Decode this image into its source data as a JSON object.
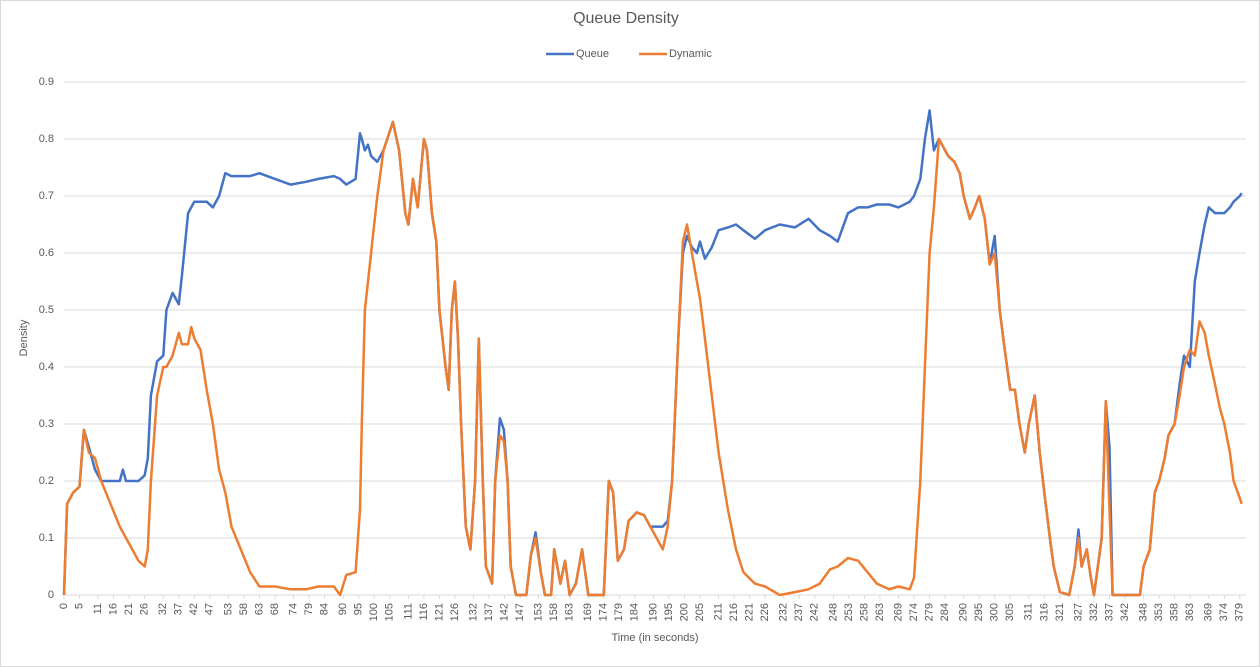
{
  "chart_data": {
    "type": "line",
    "title": "Queue Density",
    "x_label": "Time (in seconds)",
    "y_label": "Density",
    "legend": "top",
    "grid": true,
    "xlim": [
      0,
      381
    ],
    "ylim": [
      0,
      0.9
    ],
    "yticks": [
      0,
      0.1,
      0.2,
      0.3,
      0.4,
      0.5,
      0.6,
      0.7,
      0.8,
      0.9
    ],
    "xticks": [
      0,
      5,
      11,
      16,
      21,
      26,
      32,
      37,
      42,
      47,
      53,
      58,
      63,
      68,
      74,
      79,
      84,
      90,
      95,
      100,
      105,
      111,
      116,
      121,
      126,
      132,
      137,
      142,
      147,
      153,
      158,
      163,
      169,
      174,
      179,
      184,
      190,
      195,
      200,
      205,
      211,
      216,
      221,
      226,
      232,
      237,
      242,
      248,
      253,
      258,
      263,
      269,
      274,
      279,
      284,
      290,
      295,
      300,
      305,
      311,
      316,
      321,
      327,
      332,
      337,
      342,
      348,
      353,
      358,
      363,
      369,
      374,
      379
    ],
    "x": [
      0,
      1,
      3,
      5,
      6.4,
      8,
      10,
      12,
      15,
      18,
      19,
      20,
      22,
      24,
      26,
      27,
      28,
      30,
      32,
      33,
      35,
      37,
      38,
      40,
      41,
      42,
      44,
      46,
      48,
      50,
      52,
      54,
      57,
      60,
      63,
      68,
      73,
      78,
      82,
      87,
      89,
      91,
      94,
      95.4,
      96,
      97,
      98,
      99,
      101,
      103,
      106,
      108,
      110,
      111,
      112.5,
      114,
      116,
      117,
      118.6,
      120,
      121,
      123,
      124,
      125,
      126,
      127,
      128,
      129.5,
      131,
      132.5,
      133.7,
      135,
      136,
      138,
      139,
      140.5,
      141.8,
      143,
      144,
      145.7,
      149,
      150.5,
      152,
      153.7,
      155,
      157,
      158,
      160,
      161.5,
      163,
      165,
      167,
      169,
      174,
      175.6,
      177,
      178.5,
      180.5,
      182,
      184.6,
      187,
      189,
      191,
      193,
      194.6,
      196,
      198,
      199.5,
      200.8,
      202.4,
      204,
      205,
      206.6,
      208.8,
      211,
      214,
      216.6,
      219,
      222.7,
      226,
      230.7,
      235.6,
      240,
      243.6,
      246.9,
      249.4,
      252.7,
      256,
      259,
      262,
      266,
      269,
      272.6,
      274,
      276,
      277.5,
      279,
      280.4,
      282,
      285,
      287,
      288.7,
      290,
      292,
      293.6,
      295,
      296.8,
      298.4,
      300,
      301.6,
      303,
      305,
      306.5,
      308,
      309.7,
      311,
      312.9,
      314.5,
      316,
      317.8,
      319,
      321,
      324,
      325.8,
      327,
      328,
      329.7,
      331,
      332,
      334.5,
      335.8,
      337,
      338,
      346.8,
      348,
      350,
      351.6,
      353,
      354.8,
      356,
      358,
      359.6,
      361,
      362.9,
      364.5,
      366,
      367.7,
      369,
      371,
      372.5,
      374,
      375.8,
      377,
      379,
      379.6
    ],
    "series": [
      {
        "name": "Queue",
        "color": "#4472c4",
        "values": [
          0,
          0.16,
          0.18,
          0.19,
          0.29,
          0.26,
          0.22,
          0.2,
          0.2,
          0.2,
          0.22,
          0.2,
          0.2,
          0.2,
          0.21,
          0.24,
          0.35,
          0.41,
          0.42,
          0.5,
          0.53,
          0.51,
          0.56,
          0.67,
          0.68,
          0.69,
          0.69,
          0.69,
          0.68,
          0.7,
          0.74,
          0.735,
          0.735,
          0.735,
          0.74,
          0.73,
          0.72,
          0.725,
          0.73,
          0.735,
          0.73,
          0.72,
          0.73,
          0.81,
          0.8,
          0.78,
          0.79,
          0.77,
          0.76,
          0.78,
          0.83,
          0.78,
          0.67,
          0.65,
          0.73,
          0.68,
          0.8,
          0.78,
          0.67,
          0.62,
          0.5,
          0.4,
          0.36,
          0.5,
          0.55,
          0.45,
          0.3,
          0.12,
          0.08,
          0.2,
          0.45,
          0.2,
          0.05,
          0.02,
          0.2,
          0.31,
          0.29,
          0.2,
          0.05,
          0,
          0,
          0.07,
          0.11,
          0.04,
          0,
          0,
          0.08,
          0.02,
          0.06,
          0,
          0.02,
          0.08,
          0,
          0,
          0.2,
          0.18,
          0.06,
          0.08,
          0.13,
          0.145,
          0.14,
          0.12,
          0.12,
          0.12,
          0.13,
          0.2,
          0.45,
          0.6,
          0.63,
          0.61,
          0.6,
          0.62,
          0.59,
          0.61,
          0.64,
          0.645,
          0.65,
          0.64,
          0.625,
          0.64,
          0.65,
          0.645,
          0.66,
          0.64,
          0.63,
          0.62,
          0.67,
          0.68,
          0.68,
          0.685,
          0.685,
          0.68,
          0.69,
          0.7,
          0.73,
          0.8,
          0.85,
          0.78,
          0.8,
          0.77,
          0.76,
          0.74,
          0.7,
          0.66,
          0.68,
          0.7,
          0.66,
          0.58,
          0.63,
          0.5,
          0.44,
          0.36,
          0.36,
          0.3,
          0.25,
          0.3,
          0.35,
          0.25,
          0.18,
          0.1,
          0.05,
          0.005,
          0,
          0.05,
          0.115,
          0.05,
          0.08,
          0.03,
          0,
          0.1,
          0.34,
          0.26,
          0,
          0,
          0.05,
          0.08,
          0.18,
          0.2,
          0.24,
          0.28,
          0.3,
          0.37,
          0.42,
          0.4,
          0.55,
          0.6,
          0.65,
          0.68,
          0.67,
          0.67,
          0.67,
          0.68,
          0.69,
          0.7,
          0.705
        ]
      },
      {
        "name": "Dynamic",
        "color": "#ed7d31",
        "values": [
          0,
          0.16,
          0.18,
          0.19,
          0.29,
          0.25,
          0.24,
          0.2,
          0.16,
          0.12,
          0.11,
          0.1,
          0.08,
          0.06,
          0.05,
          0.08,
          0.2,
          0.35,
          0.4,
          0.4,
          0.42,
          0.46,
          0.44,
          0.44,
          0.47,
          0.45,
          0.43,
          0.36,
          0.3,
          0.22,
          0.18,
          0.12,
          0.08,
          0.04,
          0.015,
          0.015,
          0.01,
          0.01,
          0.015,
          0.015,
          0,
          0.035,
          0.04,
          0.15,
          0.3,
          0.5,
          0.55,
          0.6,
          0.7,
          0.78,
          0.83,
          0.78,
          0.67,
          0.65,
          0.73,
          0.68,
          0.8,
          0.78,
          0.67,
          0.62,
          0.5,
          0.4,
          0.36,
          0.5,
          0.55,
          0.45,
          0.3,
          0.12,
          0.08,
          0.2,
          0.45,
          0.2,
          0.05,
          0.02,
          0.2,
          0.28,
          0.27,
          0.2,
          0.05,
          0,
          0,
          0.07,
          0.1,
          0.04,
          0,
          0,
          0.08,
          0.02,
          0.06,
          0,
          0.02,
          0.08,
          0,
          0,
          0.2,
          0.18,
          0.06,
          0.08,
          0.13,
          0.145,
          0.14,
          0.12,
          0.1,
          0.08,
          0.12,
          0.2,
          0.45,
          0.62,
          0.65,
          0.6,
          0.55,
          0.52,
          0.45,
          0.35,
          0.25,
          0.15,
          0.08,
          0.04,
          0.02,
          0.015,
          0,
          0.005,
          0.01,
          0.02,
          0.045,
          0.05,
          0.065,
          0.06,
          0.04,
          0.02,
          0.01,
          0.015,
          0.01,
          0.03,
          0.2,
          0.4,
          0.6,
          0.68,
          0.8,
          0.77,
          0.76,
          0.74,
          0.7,
          0.66,
          0.68,
          0.7,
          0.66,
          0.58,
          0.6,
          0.5,
          0.44,
          0.36,
          0.36,
          0.3,
          0.25,
          0.3,
          0.35,
          0.25,
          0.18,
          0.1,
          0.05,
          0.005,
          0,
          0.05,
          0.1,
          0.05,
          0.08,
          0.03,
          0,
          0.1,
          0.34,
          0.15,
          0,
          0,
          0.05,
          0.08,
          0.18,
          0.2,
          0.24,
          0.28,
          0.3,
          0.35,
          0.4,
          0.43,
          0.42,
          0.48,
          0.46,
          0.42,
          0.37,
          0.33,
          0.3,
          0.25,
          0.2,
          0.17,
          0.16
        ]
      }
    ]
  }
}
